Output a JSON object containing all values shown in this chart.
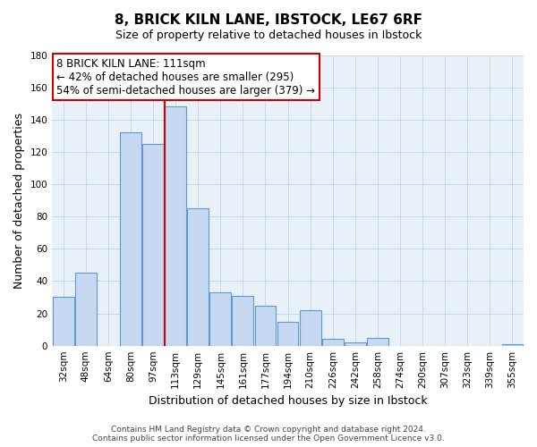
{
  "title": "8, BRICK KILN LANE, IBSTOCK, LE67 6RF",
  "subtitle": "Size of property relative to detached houses in Ibstock",
  "xlabel": "Distribution of detached houses by size in Ibstock",
  "ylabel": "Number of detached properties",
  "bin_labels": [
    "32sqm",
    "48sqm",
    "64sqm",
    "80sqm",
    "97sqm",
    "113sqm",
    "129sqm",
    "145sqm",
    "161sqm",
    "177sqm",
    "194sqm",
    "210sqm",
    "226sqm",
    "242sqm",
    "258sqm",
    "274sqm",
    "290sqm",
    "307sqm",
    "323sqm",
    "339sqm",
    "355sqm"
  ],
  "bar_heights": [
    30,
    45,
    0,
    132,
    125,
    148,
    85,
    33,
    31,
    25,
    15,
    22,
    4,
    2,
    5,
    0,
    0,
    0,
    0,
    0,
    1
  ],
  "bar_color": "#c6d9f0",
  "bar_edge_color": "#5b9bd5",
  "property_line_color": "#cc0000",
  "annotation_text": "8 BRICK KILN LANE: 111sqm\n← 42% of detached houses are smaller (295)\n54% of semi-detached houses are larger (379) →",
  "annotation_box_color": "#ffffff",
  "annotation_box_edge_color": "#cc0000",
  "ylim": [
    0,
    180
  ],
  "yticks": [
    0,
    20,
    40,
    60,
    80,
    100,
    120,
    140,
    160,
    180
  ],
  "footer_line1": "Contains HM Land Registry data © Crown copyright and database right 2024.",
  "footer_line2": "Contains public sector information licensed under the Open Government Licence v3.0.",
  "background_color": "#ffffff",
  "grid_color": "#c8d8e8",
  "title_fontsize": 11,
  "subtitle_fontsize": 9,
  "axis_label_fontsize": 9,
  "tick_fontsize": 7.5,
  "annotation_fontsize": 8.5,
  "footer_fontsize": 6.5
}
